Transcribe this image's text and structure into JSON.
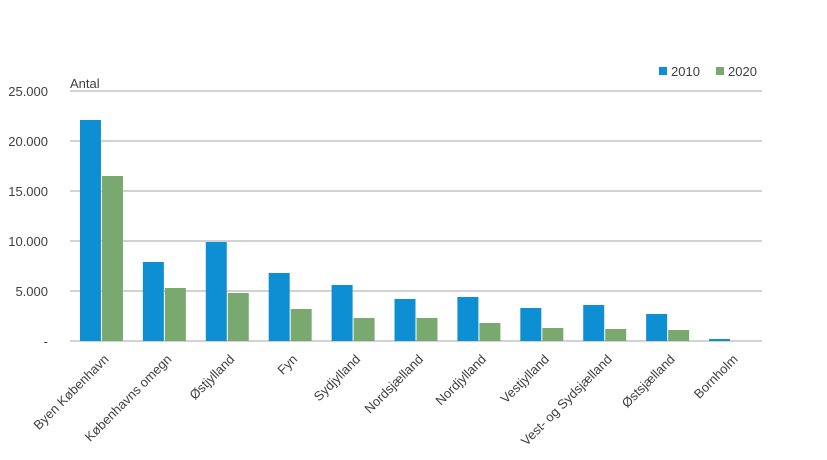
{
  "chart_data": {
    "type": "bar",
    "ylabel": "Antal",
    "ylim": [
      0,
      25000
    ],
    "yticks": [
      0,
      5000,
      10000,
      15000,
      20000,
      25000
    ],
    "ytick_labels": [
      "-",
      "5.000",
      "10.000",
      "15.000",
      "20.000",
      "25.000"
    ],
    "categories": [
      "Byen København",
      "Københavns omegn",
      "Østjylland",
      "Fyn",
      "Sydjylland",
      "Nordsjælland",
      "Nordjylland",
      "Vestjylland",
      "Vest- og Sydsjælland",
      "Østsjælland",
      "Bornholm"
    ],
    "series": [
      {
        "name": "2010",
        "color": "#0e8fd3",
        "values": [
          22100,
          7900,
          9900,
          6800,
          5600,
          4200,
          4400,
          3300,
          3600,
          2700,
          200
        ]
      },
      {
        "name": "2020",
        "color": "#79a96f",
        "values": [
          16500,
          5300,
          4800,
          3200,
          2300,
          2300,
          1800,
          1300,
          1200,
          1100,
          0
        ]
      }
    ],
    "grid": true,
    "legend_position": "top-right"
  }
}
